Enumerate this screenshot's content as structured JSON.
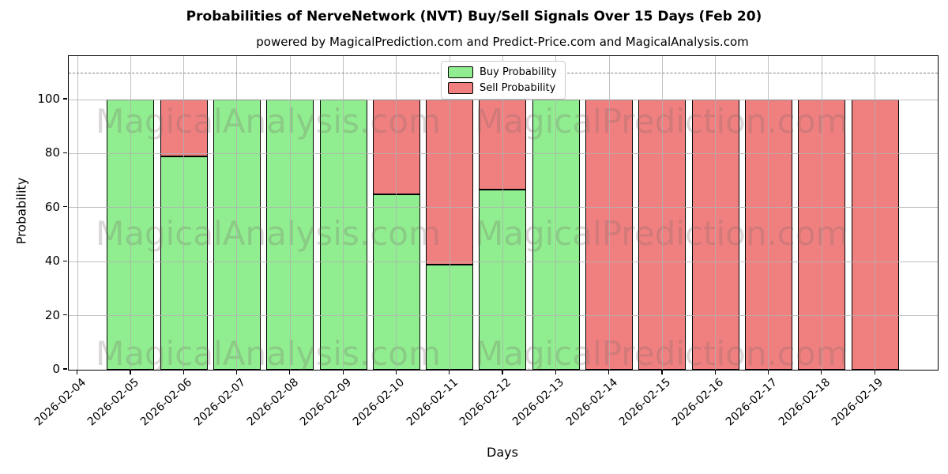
{
  "header": {
    "title": "Probabilities of NerveNetwork (NVT) Buy/Sell Signals Over 15 Days (Feb 20)",
    "subtitle": "powered by MagicalPrediction.com and Predict-Price.com and MagicalAnalysis.com"
  },
  "watermarks": {
    "left_text": "MagicalAnalysis.com",
    "right_text": "MagicalPrediction.com"
  },
  "legend": {
    "items": [
      {
        "label": "Buy Probability",
        "color": "#90EE90"
      },
      {
        "label": "Sell Probability",
        "color": "#F08080"
      }
    ]
  },
  "chart_data": {
    "type": "bar",
    "stacked": true,
    "title": "Probabilities of NerveNetwork (NVT) Buy/Sell Signals Over 15 Days (Feb 20)",
    "xlabel": "Days",
    "ylabel": "Probability",
    "x_ticks": [
      "2026-02-04",
      "2026-02-05",
      "2026-02-06",
      "2026-02-07",
      "2026-02-08",
      "2026-02-09",
      "2026-02-10",
      "2026-02-11",
      "2026-02-12",
      "2026-02-13",
      "2026-02-14",
      "2026-02-15",
      "2026-02-16",
      "2026-02-17",
      "2026-02-18",
      "2026-02-19"
    ],
    "categories": [
      "2026-02-05",
      "2026-02-06",
      "2026-02-07",
      "2026-02-08",
      "2026-02-09",
      "2026-02-10",
      "2026-02-11",
      "2026-02-12",
      "2026-02-13",
      "2026-02-14",
      "2026-02-15",
      "2026-02-16",
      "2026-02-17",
      "2026-02-18",
      "2026-02-19"
    ],
    "series": [
      {
        "name": "Buy Probability",
        "color": "#90EE90",
        "values": [
          100,
          79,
          100,
          100,
          100,
          65,
          39,
          66.7,
          100,
          0,
          0,
          0,
          0,
          0,
          0
        ]
      },
      {
        "name": "Sell Probability",
        "color": "#F08080",
        "values": [
          0,
          21,
          0,
          0,
          0,
          35,
          61,
          33.3,
          0,
          100,
          100,
          100,
          100,
          100,
          100
        ]
      }
    ],
    "y_ticks": [
      0,
      20,
      40,
      60,
      80,
      100
    ],
    "ylim": [
      0,
      116
    ],
    "dashed_hline": 110,
    "grid": true,
    "legend_position": "upper center",
    "bar_edge_color": "#000000",
    "grid_color": "#b0b0b0"
  }
}
